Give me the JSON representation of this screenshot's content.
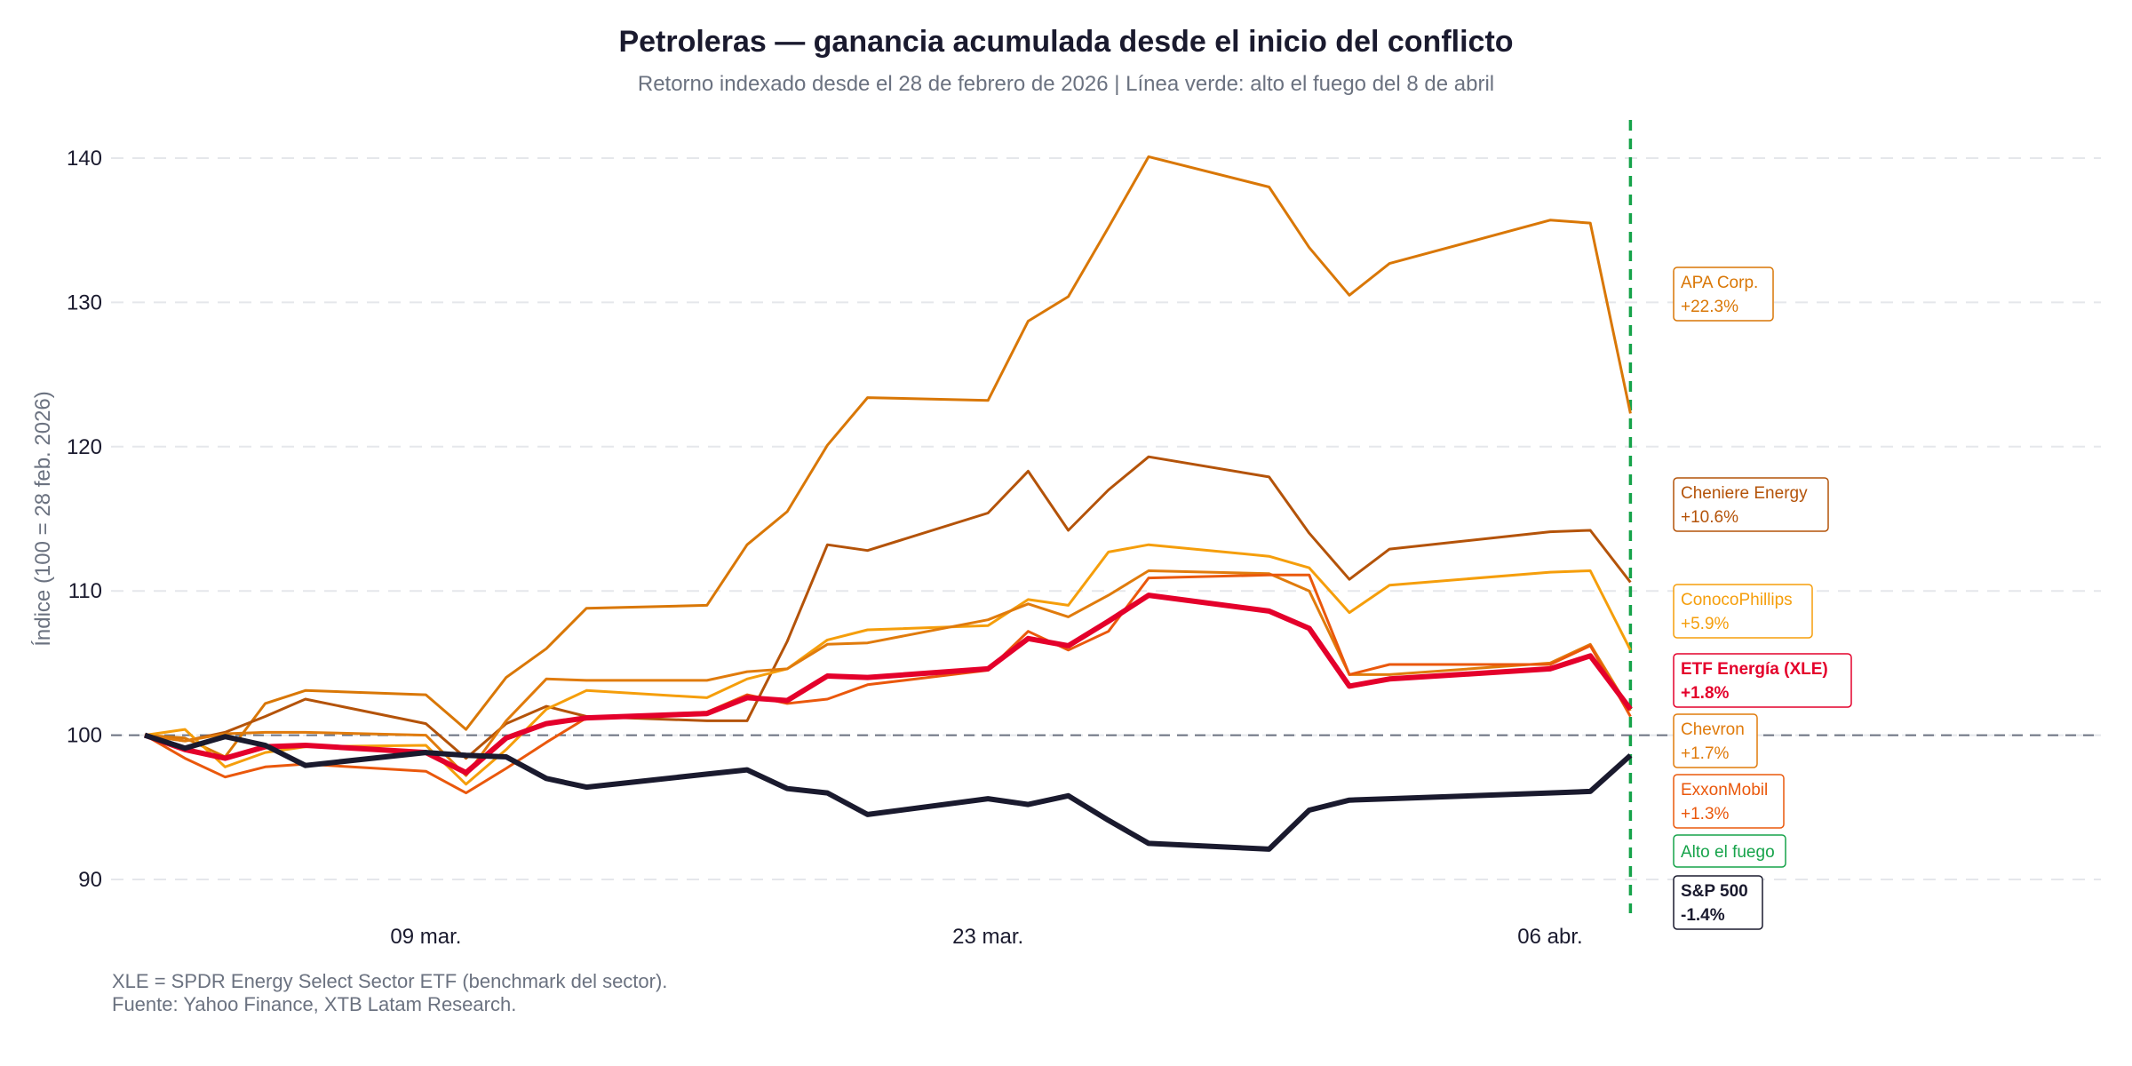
{
  "chart_data": {
    "type": "line",
    "title": "Petroleras — ganancia acumulada desde el inicio del conflicto",
    "subtitle": "Retorno indexado desde el 28 de febrero de 2026 | Línea verde: alto el fuego del 8 de abril",
    "ylabel": "Índice (100 = 28 feb. 2026)",
    "xlabel": "",
    "ylim": [
      88,
      143
    ],
    "yticks": [
      90,
      100,
      110,
      120,
      130,
      140
    ],
    "xticks": [
      {
        "date": "2026-03-09",
        "label": "09 mar."
      },
      {
        "date": "2026-03-23",
        "label": "23 mar."
      },
      {
        "date": "2026-04-06",
        "label": "06 abr."
      }
    ],
    "grid": true,
    "baseline": 100,
    "ceasefire": {
      "date": "2026-04-08",
      "label": "Alto el fuego",
      "color": "#16a34a"
    },
    "x": [
      "2026-03-02",
      "2026-03-03",
      "2026-03-04",
      "2026-03-05",
      "2026-03-06",
      "2026-03-09",
      "2026-03-10",
      "2026-03-11",
      "2026-03-12",
      "2026-03-13",
      "2026-03-16",
      "2026-03-17",
      "2026-03-18",
      "2026-03-19",
      "2026-03-20",
      "2026-03-23",
      "2026-03-24",
      "2026-03-25",
      "2026-03-26",
      "2026-03-27",
      "2026-03-30",
      "2026-03-31",
      "2026-04-01",
      "2026-04-02",
      "2026-04-06",
      "2026-04-07",
      "2026-04-08"
    ],
    "series": [
      {
        "name": "APA Corp.",
        "change": "+22.3%",
        "color": "#d97706",
        "width": 3,
        "bold": false,
        "values": [
          100,
          99.8,
          98.5,
          102.2,
          103.1,
          102.8,
          100.4,
          104.0,
          106.0,
          108.8,
          109.0,
          113.2,
          115.5,
          120.1,
          123.4,
          123.2,
          128.7,
          130.4,
          135.2,
          140.1,
          138.0,
          133.8,
          130.5,
          132.7,
          135.7,
          135.5,
          122.3
        ]
      },
      {
        "name": "Cheniere Energy",
        "change": "+10.6%",
        "color": "#b45309",
        "width": 3,
        "bold": false,
        "values": [
          100,
          99.6,
          100.2,
          101.3,
          102.5,
          100.8,
          98.4,
          100.8,
          102.0,
          101.3,
          101.0,
          101.0,
          106.5,
          113.2,
          112.8,
          115.4,
          118.3,
          114.2,
          117.0,
          119.3,
          117.9,
          114.0,
          110.8,
          112.9,
          114.1,
          114.2,
          110.6
        ]
      },
      {
        "name": "ConocoPhillips",
        "change": "+5.9%",
        "color": "#f59e0b",
        "width": 3,
        "bold": false,
        "values": [
          100,
          100.4,
          97.8,
          98.8,
          99.2,
          99.3,
          96.6,
          99.0,
          101.8,
          103.1,
          102.6,
          103.9,
          104.6,
          106.6,
          107.3,
          107.6,
          109.4,
          109.0,
          112.7,
          113.2,
          112.4,
          111.6,
          108.5,
          110.4,
          111.3,
          111.4,
          105.9
        ]
      },
      {
        "name": "Chevron",
        "change": "+1.7%",
        "color": "#e07b0c",
        "width": 3,
        "bold": false,
        "values": [
          100,
          99.6,
          100.1,
          100.2,
          100.2,
          100.0,
          97.2,
          101.0,
          103.9,
          103.8,
          103.8,
          104.4,
          104.6,
          106.3,
          106.4,
          108.0,
          109.1,
          108.2,
          109.7,
          111.4,
          111.2,
          110.0,
          104.2,
          104.2,
          105.0,
          106.3,
          101.7
        ]
      },
      {
        "name": "ExxonMobil",
        "change": "+1.3%",
        "color": "#ea580c",
        "width": 3,
        "bold": false,
        "values": [
          100,
          98.4,
          97.1,
          97.8,
          98.0,
          97.5,
          96.0,
          97.7,
          99.5,
          101.2,
          101.6,
          102.8,
          102.2,
          102.5,
          103.5,
          104.5,
          107.2,
          105.9,
          107.2,
          110.9,
          111.1,
          111.1,
          104.2,
          104.9,
          104.9,
          106.2,
          101.3
        ]
      },
      {
        "name": "ETF Energía (XLE)",
        "change": "+1.8%",
        "color": "#e4002b",
        "width": 6,
        "bold": true,
        "values": [
          100,
          99.0,
          98.4,
          99.2,
          99.3,
          98.8,
          97.4,
          99.8,
          100.8,
          101.2,
          101.5,
          102.6,
          102.4,
          104.1,
          104.0,
          104.6,
          106.7,
          106.2,
          107.9,
          109.7,
          108.6,
          107.4,
          103.4,
          103.9,
          104.6,
          105.5,
          101.8
        ]
      },
      {
        "name": "S&P 500",
        "change": "-1.4%",
        "color": "#1a1a2e",
        "width": 6,
        "bold": true,
        "values": [
          100,
          99.1,
          99.9,
          99.3,
          97.9,
          98.8,
          98.6,
          98.5,
          97.0,
          96.4,
          97.3,
          97.6,
          96.3,
          96.0,
          94.5,
          95.6,
          95.2,
          95.8,
          94.1,
          92.5,
          92.1,
          94.8,
          95.5,
          95.6,
          96.0,
          96.1,
          98.6
        ]
      }
    ],
    "footnotes": [
      "XLE = SPDR Energy Select Sector ETF (benchmark del sector).",
      "Fuente: Yahoo Finance, XTB Latam Research."
    ]
  }
}
